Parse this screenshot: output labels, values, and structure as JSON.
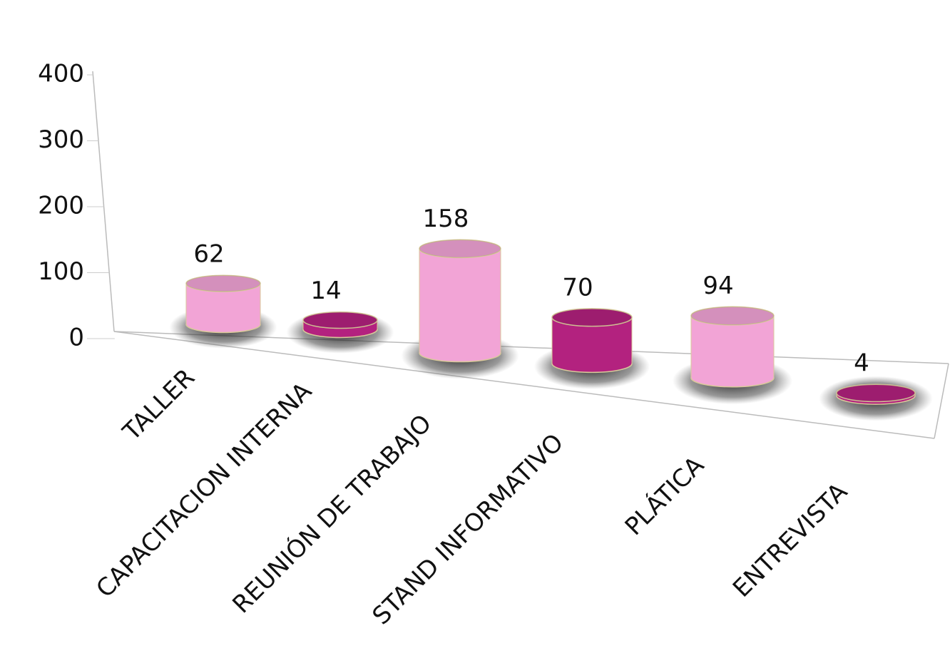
{
  "chart_data": {
    "type": "bar3d",
    "categories": [
      "TALLER",
      "CAPACITACION INTERNA",
      "REUNIÓN DE TRABAJO",
      "STAND INFORMATIVO",
      "PLÁTICA",
      "ENTREVISTA"
    ],
    "values": [
      62,
      14,
      158,
      70,
      94,
      4
    ],
    "colors": [
      "#f2a4d6",
      "#b3227f",
      "#f2a4d6",
      "#b3227f",
      "#f2a4d6",
      "#b3227f"
    ],
    "ylim": [
      0,
      400
    ],
    "yticks": [
      0,
      100,
      200,
      300,
      400
    ]
  }
}
